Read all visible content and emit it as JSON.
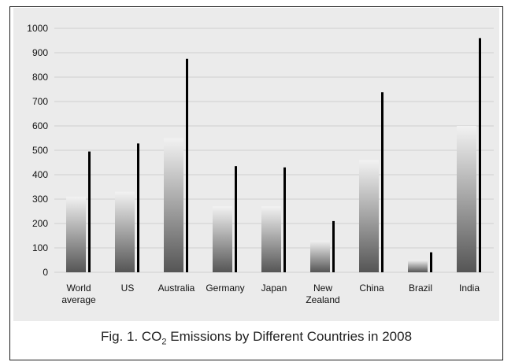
{
  "caption": {
    "prefix": "Fig. 1. CO",
    "subscript": "2",
    "suffix": " Emissions by Different Countries in 2008"
  },
  "colors": {
    "bar_dark": "#555555",
    "bar_light": "#f2f2f2",
    "line": "#000000",
    "gridline": "#cfcfcf",
    "panel": "#ebebeb"
  },
  "chart_data": {
    "type": "bar",
    "title": "",
    "xlabel": "",
    "ylabel": "",
    "ylim": [
      0,
      1000
    ],
    "yticks": [
      0,
      100,
      200,
      300,
      400,
      500,
      600,
      700,
      800,
      900,
      1000
    ],
    "grid": true,
    "categories": [
      [
        "World",
        "average"
      ],
      [
        "US"
      ],
      [
        "Australia"
      ],
      [
        "Germany"
      ],
      [
        "Japan"
      ],
      [
        "New",
        "Zealand"
      ],
      [
        "China"
      ],
      [
        "Brazil"
      ],
      [
        "India"
      ]
    ],
    "series": [
      {
        "type": "bar",
        "values": [
          310,
          330,
          550,
          270,
          270,
          130,
          460,
          50,
          600
        ]
      },
      {
        "type": "line",
        "values": [
          495,
          528,
          875,
          435,
          430,
          210,
          738,
          82,
          960
        ]
      }
    ]
  }
}
